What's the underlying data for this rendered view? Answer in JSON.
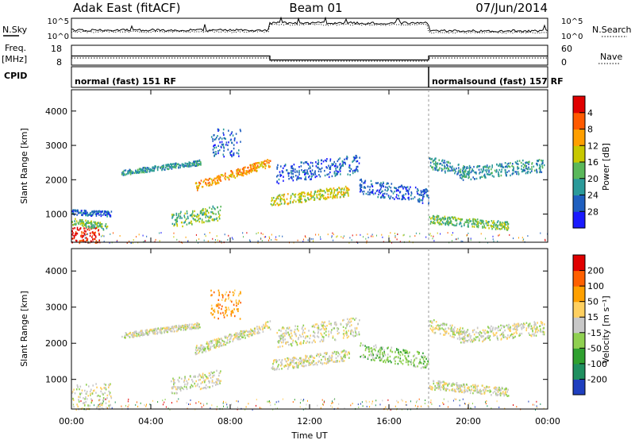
{
  "header": {
    "radar_title": "Adak East (fitACF)",
    "beam_title": "Beam 01",
    "date_title": "07/Jun/2014"
  },
  "strips": {
    "nsky_label": "N.Sky",
    "nsearch_label": "N.Search",
    "noise_ticks_left": [
      "10^5",
      "10^0"
    ],
    "noise_ticks_right": [
      "10^5",
      "10^0"
    ],
    "freq_label": "Freq.",
    "freq_unit": "[MHz]",
    "freq_ticks": [
      "18",
      "8"
    ],
    "nave_label": "Nave",
    "nave_ticks": [
      "60",
      "0"
    ],
    "cpid_label": "CPID",
    "cpid_segments": [
      {
        "label": "normal (fast) 151 RF",
        "start_hour": 0,
        "end_hour": 18
      },
      {
        "label": "normalsound (fast) 157 RF",
        "start_hour": 18,
        "end_hour": 24
      }
    ],
    "freq_steps": [
      {
        "start_hour": 0,
        "end_hour": 10,
        "mhz": 12.6
      },
      {
        "start_hour": 10,
        "end_hour": 18,
        "mhz": 10.6
      },
      {
        "start_hour": 18,
        "end_hour": 24,
        "mhz": 12.6
      }
    ]
  },
  "chart_data": [
    {
      "type": "heatmap",
      "parameter": "power",
      "ylabel": "Slant Range [km]",
      "yticks": [
        "1000",
        "2000",
        "3000",
        "4000"
      ],
      "ylim": [
        180,
        4620
      ],
      "xlim": [
        0,
        24
      ],
      "colorbar_label": "Power [dB]",
      "colorbar_ticks": [
        "4",
        "8",
        "12",
        "16",
        "20",
        "24",
        "28"
      ],
      "colors": [
        "#1a1aff",
        "#1f5fbf",
        "#2b9a9a",
        "#5ab85a",
        "#c8c800",
        "#ff9f00",
        "#ff5a00",
        "#e00000"
      ],
      "scatter_echoes": [
        {
          "hour_start": 0.0,
          "hour_end": 2.0,
          "range_start": 1000,
          "range_end": 1150,
          "slope": -50,
          "class": 1
        },
        {
          "hour_start": 0.0,
          "hour_end": 1.4,
          "range_start": 180,
          "range_end": 650,
          "slope": 0,
          "class": 7
        },
        {
          "hour_start": 0.0,
          "hour_end": 1.8,
          "range_start": 700,
          "range_end": 900,
          "slope": -150,
          "class": 3
        },
        {
          "hour_start": 2.5,
          "hour_end": 6.5,
          "range_start": 2150,
          "range_end": 2300,
          "slope": 300,
          "class": 2
        },
        {
          "hour_start": 5.0,
          "hour_end": 7.5,
          "range_start": 600,
          "range_end": 1050,
          "slope": 250,
          "class": 3
        },
        {
          "hour_start": 6.2,
          "hour_end": 10.0,
          "range_start": 1700,
          "range_end": 1950,
          "slope": 700,
          "class": 5
        },
        {
          "hour_start": 7.0,
          "hour_end": 8.5,
          "range_start": 2700,
          "range_end": 3500,
          "slope": 0,
          "class": 1
        },
        {
          "hour_start": 10.0,
          "hour_end": 14.0,
          "range_start": 1250,
          "range_end": 1550,
          "slope": 300,
          "class": 4
        },
        {
          "hour_start": 10.3,
          "hour_end": 14.5,
          "range_start": 1900,
          "range_end": 2450,
          "slope": 300,
          "class": 1
        },
        {
          "hour_start": 14.5,
          "hour_end": 18.0,
          "range_start": 1600,
          "range_end": 2050,
          "slope": -300,
          "class": 1
        },
        {
          "hour_start": 18.0,
          "hour_end": 20.0,
          "range_start": 2350,
          "range_end": 2700,
          "slope": -300,
          "class": 2
        },
        {
          "hour_start": 19.5,
          "hour_end": 23.8,
          "range_start": 2000,
          "range_end": 2400,
          "slope": 250,
          "class": 2
        },
        {
          "hour_start": 18.0,
          "hour_end": 22.0,
          "range_start": 750,
          "range_end": 1000,
          "slope": -200,
          "class": 3
        }
      ]
    },
    {
      "type": "heatmap",
      "parameter": "velocity",
      "ylabel": "Slant Range [km]",
      "yticks": [
        "1000",
        "2000",
        "3000",
        "4000"
      ],
      "ylim": [
        180,
        4620
      ],
      "xlim": [
        0,
        24
      ],
      "xticks": [
        "00:00",
        "04:00",
        "08:00",
        "12:00",
        "16:00",
        "20:00",
        "00:00"
      ],
      "xlabel": "Time UT",
      "colorbar_label": "Velocity [m s⁻¹]",
      "colorbar_ticks": [
        "200",
        "100",
        "50",
        "15",
        "-15",
        "-50",
        "-100",
        "-200"
      ],
      "colors": [
        "#1f3fbf",
        "#1f8f5f",
        "#2fa02f",
        "#8fd050",
        "#c8c8c8",
        "#ffd060",
        "#ffa000",
        "#ff6000",
        "#e00000"
      ],
      "scatter_echoes": [
        {
          "hour_start": 0.0,
          "hour_end": 2.0,
          "range_start": 180,
          "range_end": 900,
          "slope": 0,
          "class": 4
        },
        {
          "hour_start": 2.5,
          "hour_end": 6.5,
          "range_start": 2150,
          "range_end": 2300,
          "slope": 300,
          "class": 4
        },
        {
          "hour_start": 5.0,
          "hour_end": 7.5,
          "range_start": 600,
          "range_end": 1050,
          "slope": 250,
          "class": 4
        },
        {
          "hour_start": 6.2,
          "hour_end": 10.0,
          "range_start": 1700,
          "range_end": 1950,
          "slope": 700,
          "class": 4
        },
        {
          "hour_start": 7.0,
          "hour_end": 8.5,
          "range_start": 2700,
          "range_end": 3500,
          "slope": 0,
          "class": 6
        },
        {
          "hour_start": 10.0,
          "hour_end": 14.0,
          "range_start": 1250,
          "range_end": 1550,
          "slope": 300,
          "class": 4
        },
        {
          "hour_start": 10.3,
          "hour_end": 14.5,
          "range_start": 1900,
          "range_end": 2450,
          "slope": 300,
          "class": 4
        },
        {
          "hour_start": 14.5,
          "hour_end": 18.0,
          "range_start": 1600,
          "range_end": 2050,
          "slope": -300,
          "class": 3
        },
        {
          "hour_start": 18.0,
          "hour_end": 20.0,
          "range_start": 2350,
          "range_end": 2700,
          "slope": -300,
          "class": 4
        },
        {
          "hour_start": 19.5,
          "hour_end": 23.8,
          "range_start": 2000,
          "range_end": 2400,
          "slope": 250,
          "class": 4
        },
        {
          "hour_start": 18.0,
          "hour_end": 22.0,
          "range_start": 750,
          "range_end": 1000,
          "slope": -200,
          "class": 4
        }
      ]
    }
  ]
}
